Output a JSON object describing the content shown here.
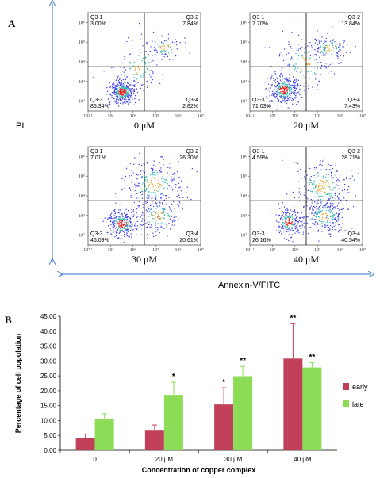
{
  "figure": {
    "panel_a_label": "A",
    "panel_b_label": "B",
    "y_axis_label": "PI",
    "x_axis_label": "Annexin-V/FITC",
    "colors": {
      "arrow": "#5b8fd4",
      "early": "#c0405a",
      "late": "#8cdc58",
      "gate_line": "#000000",
      "event_low": "#3a3ae8",
      "event_high": "#e82020"
    }
  },
  "chart_data": [
    {
      "type": "scatter",
      "title": "0 μM",
      "x_tick_labels": [
        "10²·¹",
        "10³",
        "10⁴",
        "10⁵",
        "10⁶",
        "10⁷"
      ],
      "y_tick_labels": [
        "10²",
        "10³",
        "10⁴",
        "10⁵",
        "10⁶"
      ],
      "quadrants": [
        {
          "name": "Q3-1",
          "percent": "3.00%"
        },
        {
          "name": "Q3-2",
          "percent": "7.84%"
        },
        {
          "name": "Q3-3",
          "percent": "86.34%"
        },
        {
          "name": "Q3-4",
          "percent": "2.82%"
        }
      ]
    },
    {
      "type": "scatter",
      "title": "20 μM",
      "x_tick_labels": [
        "10²·¹",
        "10³",
        "10⁴",
        "10⁵",
        "10⁶",
        "10⁷"
      ],
      "y_tick_labels": [
        "10²",
        "10³",
        "10⁴",
        "10⁵",
        "10⁶"
      ],
      "quadrants": [
        {
          "name": "Q3-1",
          "percent": "7.70%"
        },
        {
          "name": "Q3-2",
          "percent": "13.84%"
        },
        {
          "name": "Q3-3",
          "percent": "71.03%"
        },
        {
          "name": "Q3-4",
          "percent": "7.43%"
        }
      ]
    },
    {
      "type": "scatter",
      "title": "30 μM",
      "x_tick_labels": [
        "10²·¹",
        "10³",
        "10⁴",
        "10⁵",
        "10⁶",
        "10⁷"
      ],
      "y_tick_labels": [
        "10²",
        "10³",
        "10⁴",
        "10⁵",
        "10⁶"
      ],
      "quadrants": [
        {
          "name": "Q3-1",
          "percent": "7.01%"
        },
        {
          "name": "Q3-2",
          "percent": "26.30%"
        },
        {
          "name": "Q3-3",
          "percent": "46.09%"
        },
        {
          "name": "Q3-4",
          "percent": "20.61%"
        }
      ]
    },
    {
      "type": "scatter",
      "title": "40 μM",
      "x_tick_labels": [
        "10²·¹",
        "10³",
        "10⁴",
        "10⁵",
        "10⁶",
        "10⁷"
      ],
      "y_tick_labels": [
        "10²",
        "10³",
        "10⁴",
        "10⁵",
        "10⁶"
      ],
      "quadrants": [
        {
          "name": "Q3-1",
          "percent": "4.59%"
        },
        {
          "name": "Q3-2",
          "percent": "28.71%"
        },
        {
          "name": "Q3-3",
          "percent": "26.16%"
        },
        {
          "name": "Q3-4",
          "percent": "40.54%"
        }
      ]
    },
    {
      "type": "bar",
      "categories": [
        "0",
        "20 μM",
        "30 μM",
        "40 μM"
      ],
      "series": [
        {
          "name": "early",
          "values": [
            4.2,
            6.6,
            15.4,
            30.8
          ],
          "error": [
            1.3,
            1.9,
            5.6,
            11.7
          ],
          "significance": [
            "",
            "",
            "*",
            "**"
          ]
        },
        {
          "name": "late",
          "values": [
            10.5,
            18.6,
            24.9,
            27.8
          ],
          "error": [
            1.8,
            4.3,
            3.3,
            1.6
          ],
          "significance": [
            "",
            "*",
            "**",
            "**"
          ]
        }
      ],
      "xlabel": "Concentration of copper complex",
      "ylabel": "Percentage of cell population",
      "ylim": [
        0,
        45
      ],
      "y_ticks": [
        "0.00",
        "5.00",
        "10.00",
        "15.00",
        "20.00",
        "25.00",
        "30.00",
        "35.00",
        "40.00",
        "45.00"
      ],
      "legend_position": "right",
      "grid": false
    }
  ]
}
